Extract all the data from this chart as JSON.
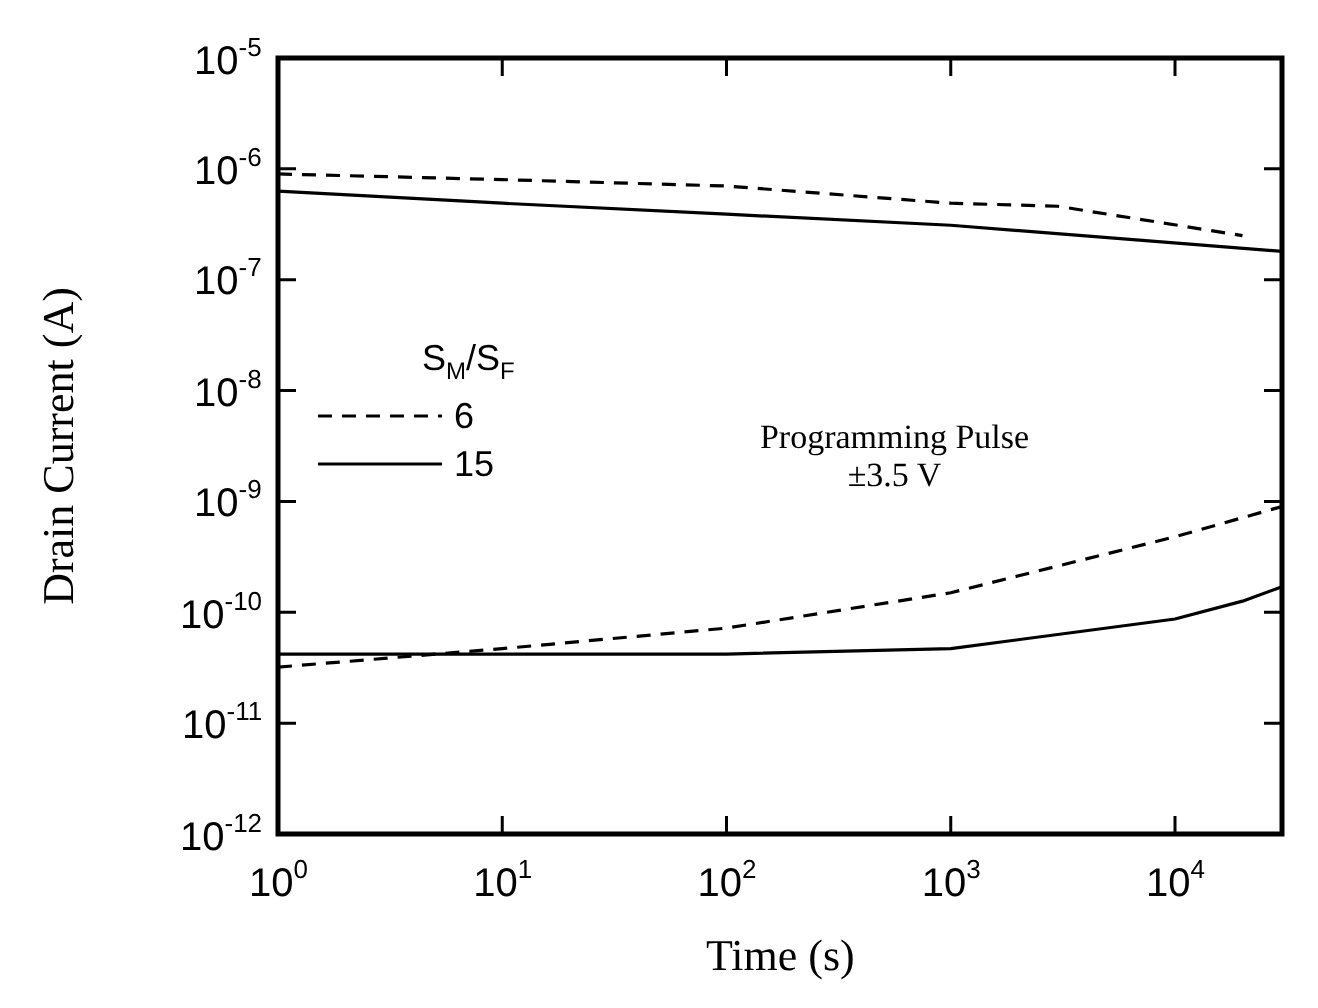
{
  "chart_data": {
    "type": "line",
    "xlabel": "Time (s)",
    "ylabel": "Drain Current  (A)",
    "legend_title": "S$_{M}$/S$_{F}$",
    "legend": "left",
    "log": "xy",
    "grid": false,
    "annotations": [
      "Programming Pulse",
      "±3.5 V"
    ],
    "xlim": [
      1,
      30000
    ],
    "ylim": [
      1e-12,
      1e-05
    ],
    "xticks": [
      {
        "value": 1,
        "label": "10$^{0}$"
      },
      {
        "value": 10,
        "label": "10$^{1}$"
      },
      {
        "value": 100,
        "label": "10$^{2}$"
      },
      {
        "value": 1000,
        "label": "10$^{3}$"
      },
      {
        "value": 10000,
        "label": "10$^{4}$"
      }
    ],
    "yticks": [
      {
        "value": 1e-12,
        "label": "10$^{-12}$"
      },
      {
        "value": 1e-11,
        "label": "10$^{-11}$"
      },
      {
        "value": 1e-10,
        "label": "10$^{-10}$"
      },
      {
        "value": 1e-09,
        "label": "10$^{-9}$"
      },
      {
        "value": 1e-08,
        "label": "10$^{-8}$"
      },
      {
        "value": 1e-07,
        "label": "10$^{-7}$"
      },
      {
        "value": 1e-06,
        "label": "10$^{-6}$"
      },
      {
        "value": 1e-05,
        "label": "10$^{-5}$"
      }
    ],
    "series": [
      {
        "name": "6",
        "color": "#000000",
        "line_style": "dashed",
        "x": [
          1,
          10,
          100,
          1000,
          3000,
          20000
        ],
        "values": [
          9e-07,
          8e-07,
          7e-07,
          4.9e-07,
          4.6e-07,
          2.5e-07
        ]
      },
      {
        "name": "15",
        "color": "#000000",
        "line_style": "solid",
        "x": [
          1,
          10,
          100,
          1000,
          30000
        ],
        "values": [
          6.3e-07,
          4.9e-07,
          3.9e-07,
          3.1e-07,
          1.8e-07
        ]
      },
      {
        "color": "#000000",
        "line_style": "dashed",
        "x": [
          1,
          10,
          100,
          1000,
          10000,
          30000
        ],
        "values": [
          3.2e-11,
          4.7e-11,
          7.2e-11,
          1.5e-10,
          4.8e-10,
          9e-10
        ]
      },
      {
        "color": "#000000",
        "line_style": "solid",
        "x": [
          1,
          10,
          100,
          1000,
          10000,
          20000,
          30000
        ],
        "values": [
          4.2e-11,
          4.2e-11,
          4.2e-11,
          4.7e-11,
          8.7e-11,
          1.26e-10,
          1.7e-10
        ]
      }
    ]
  }
}
